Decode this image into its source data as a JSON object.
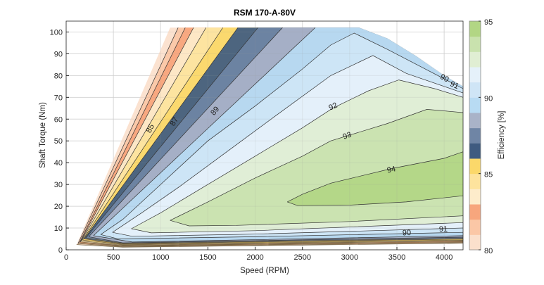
{
  "chart_data": {
    "type": "contour",
    "title": "RSM 170-A-80V",
    "xlabel": "Speed (RPM)",
    "ylabel": "Shaft Torque (Nm)",
    "xlim": [
      0,
      4200
    ],
    "ylim": [
      0,
      105
    ],
    "xticks": [
      0,
      500,
      1000,
      1500,
      2000,
      2500,
      3000,
      3500,
      4000
    ],
    "yticks": [
      0,
      10,
      20,
      30,
      40,
      50,
      60,
      70,
      80,
      90,
      100
    ],
    "grid": true,
    "colorbar": {
      "label": "Efficiency [%]",
      "range": [
        80,
        95
      ],
      "ticks": [
        80,
        85,
        90,
        95
      ],
      "placement": "right"
    },
    "outer_boundary": [
      [
        3100,
        102
      ],
      [
        3400,
        97
      ],
      [
        3700,
        89
      ],
      [
        4000,
        80
      ],
      [
        4200,
        75
      ]
    ],
    "levels": [
      {
        "level": 80,
        "color": "#fbe0cc",
        "upper": [
          [
            110,
            2.4
          ],
          [
            1100,
            102
          ]
        ],
        "lower": [
          [
            110,
            2.4
          ],
          [
            600,
            1.2
          ],
          [
            4200,
            3.0
          ]
        ]
      },
      {
        "level": 81,
        "color": "#fbc7a6",
        "upper": [
          [
            125,
            2.8
          ],
          [
            1185,
            102
          ]
        ],
        "lower": [
          [
            125,
            2.8
          ],
          [
            600,
            1.45
          ],
          [
            4200,
            3.3
          ]
        ]
      },
      {
        "level": 82,
        "color": "#f7a67d",
        "upper": [
          [
            140,
            3.2
          ],
          [
            1260,
            102
          ]
        ],
        "lower": [
          [
            140,
            3.2
          ],
          [
            600,
            1.7
          ],
          [
            4200,
            3.6
          ]
        ]
      },
      {
        "level": 83,
        "color": "#fdeccb",
        "upper": [
          [
            150,
            3.6
          ],
          [
            1348,
            102
          ]
        ],
        "lower": [
          [
            150,
            3.6
          ],
          [
            600,
            1.95
          ],
          [
            4200,
            3.9
          ]
        ]
      },
      {
        "level": 84,
        "color": "#fde39d",
        "upper": [
          [
            160,
            4.0
          ],
          [
            1480,
            102
          ]
        ],
        "lower": [
          [
            160,
            4.0
          ],
          [
            600,
            2.2
          ],
          [
            4200,
            4.2
          ]
        ]
      },
      {
        "level": 85,
        "color": "#fbd86a",
        "upper": [
          [
            175,
            4.5
          ],
          [
            1658,
            102
          ]
        ],
        "lower": [
          [
            175,
            4.5
          ],
          [
            600,
            2.45
          ],
          [
            4200,
            4.5
          ]
        ]
      },
      {
        "level": 86,
        "color": "#3f5b80",
        "upper": [
          [
            190,
            5.0
          ],
          [
            1817,
            102
          ]
        ],
        "lower": [
          [
            190,
            5.0
          ],
          [
            600,
            2.7
          ],
          [
            4200,
            4.9
          ]
        ]
      },
      {
        "level": 87,
        "color": "#6f85a5",
        "upper": [
          [
            210,
            5.5
          ],
          [
            2030,
            102
          ]
        ],
        "lower": [
          [
            210,
            5.5
          ],
          [
            600,
            2.95
          ],
          [
            4200,
            5.3
          ]
        ]
      },
      {
        "level": 88,
        "color": "#a9b3c8",
        "upper": [
          [
            240,
            6.0
          ],
          [
            2290,
            102
          ]
        ],
        "lower": [
          [
            240,
            6.0
          ],
          [
            600,
            3.2
          ],
          [
            4200,
            5.8
          ]
        ]
      },
      {
        "level": 89,
        "color": "#b8dbf3",
        "upper": [
          [
            290,
            6.5
          ],
          [
            2636,
            102
          ]
        ],
        "lower": [
          [
            290,
            6.5
          ],
          [
            700,
            3.6
          ],
          [
            4200,
            6.5
          ]
        ]
      },
      {
        "level": 90,
        "color": "#cfe5f6",
        "upper": [
          [
            366,
            7
          ],
          [
            600,
            14
          ],
          [
            1000,
            30
          ],
          [
            1500,
            50
          ],
          [
            2000,
            66
          ],
          [
            2500,
            83
          ],
          [
            2800,
            94
          ],
          [
            3048,
            99.5
          ],
          [
            3400,
            92
          ],
          [
            3800,
            83
          ],
          [
            4200,
            74
          ]
        ],
        "lower": [
          [
            366,
            7
          ],
          [
            550,
            5.0
          ],
          [
            2000,
            6.0
          ],
          [
            4200,
            8
          ]
        ]
      },
      {
        "level": 91,
        "color": "#e5f1fa",
        "upper": [
          [
            490,
            8
          ],
          [
            800,
            17
          ],
          [
            1200,
            29
          ],
          [
            1700,
            45
          ],
          [
            2200,
            61
          ],
          [
            2800,
            80
          ],
          [
            3246,
            89.2
          ],
          [
            3600,
            81
          ],
          [
            4200,
            72
          ]
        ],
        "lower": [
          [
            490,
            8
          ],
          [
            700,
            6.2
          ],
          [
            2000,
            7.2
          ],
          [
            4200,
            10
          ]
        ]
      },
      {
        "level": 92,
        "color": "#e0eed3",
        "upper": [
          [
            690,
            9.7
          ],
          [
            1000,
            17
          ],
          [
            1500,
            30
          ],
          [
            2000,
            43
          ],
          [
            2500,
            56
          ],
          [
            2820,
            65
          ],
          [
            3200,
            73
          ],
          [
            3520,
            78
          ],
          [
            3900,
            74
          ],
          [
            4200,
            70
          ]
        ],
        "lower": [
          [
            690,
            9.7
          ],
          [
            900,
            7.8
          ],
          [
            2000,
            8.8
          ],
          [
            4200,
            12.5
          ]
        ]
      },
      {
        "level": 93,
        "color": "#c9e2ae",
        "upper": [
          [
            1100,
            13.5
          ],
          [
            1500,
            22
          ],
          [
            2000,
            33
          ],
          [
            2500,
            43
          ],
          [
            2800,
            50
          ],
          [
            3400,
            58
          ],
          [
            3817,
            64.5
          ],
          [
            4200,
            63
          ]
        ],
        "lower": [
          [
            1100,
            13.5
          ],
          [
            1300,
            11
          ],
          [
            1800,
            11.2
          ],
          [
            3000,
            13
          ],
          [
            4200,
            15.6
          ]
        ]
      },
      {
        "level": 94,
        "color": "#b2d684",
        "upper": [
          [
            2340,
            22
          ],
          [
            2500,
            25.5
          ],
          [
            2800,
            30.6
          ],
          [
            3445,
            37.3
          ],
          [
            4000,
            42
          ],
          [
            4200,
            45
          ]
        ],
        "lower": [
          [
            2340,
            22
          ],
          [
            2450,
            20.3
          ],
          [
            3000,
            20.5
          ],
          [
            3600,
            22
          ],
          [
            4200,
            24.8
          ]
        ]
      }
    ],
    "contour_labels": [
      {
        "text": "85",
        "x": 886,
        "y": 55.8
      },
      {
        "text": "87",
        "x": 1139,
        "y": 59
      },
      {
        "text": "89",
        "x": 1571,
        "y": 63.9
      },
      {
        "text": "92",
        "x": 2822,
        "y": 66
      },
      {
        "text": "93",
        "x": 2971,
        "y": 52.6
      },
      {
        "text": "94",
        "x": 3440,
        "y": 37
      },
      {
        "text": "90",
        "x": 4006,
        "y": 79
      },
      {
        "text": "91",
        "x": 4110,
        "y": 75.8
      },
      {
        "text": "90",
        "x": 3604,
        "y": 8
      },
      {
        "text": "91",
        "x": 3991,
        "y": 9.7
      }
    ]
  }
}
